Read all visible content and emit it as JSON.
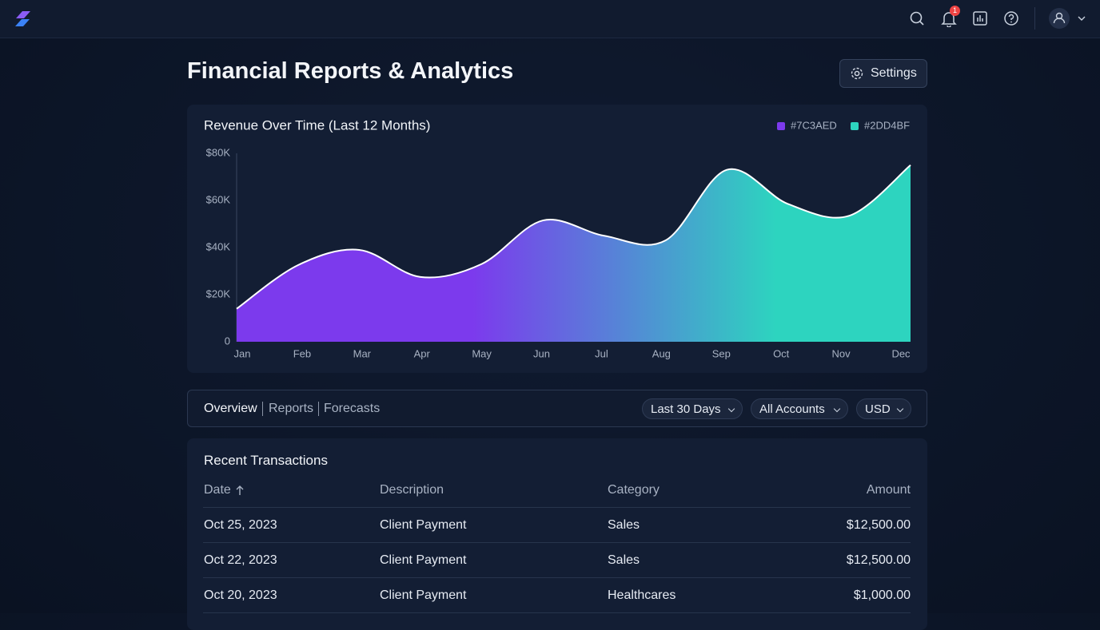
{
  "header": {
    "notification_count": "1"
  },
  "page": {
    "title": "Financial Reports & Analytics",
    "settings_label": "Settings"
  },
  "chart_data": {
    "type": "area",
    "title": "Revenue Over Time (Last 12 Months)",
    "categories": [
      "Jan",
      "Feb",
      "Mar",
      "Apr",
      "May",
      "Jun",
      "Jul",
      "Aug",
      "Sep",
      "Oct",
      "Nov",
      "Dec"
    ],
    "values": [
      14000,
      32500,
      39000,
      27500,
      33000,
      51500,
      45000,
      43000,
      73000,
      58500,
      53500,
      75000
    ],
    "gradient": [
      {
        "name": "#7C3AED",
        "color": "#7C3AED"
      },
      {
        "name": "#2DD4BF",
        "color": "#2DD4BF"
      }
    ],
    "ylim": [
      0,
      80000
    ],
    "yticks": [
      0,
      {
        "value": 20000,
        "label": "$20K"
      },
      {
        "value": 40000,
        "label": "$40K"
      },
      {
        "value": 60000,
        "label": "$60K"
      },
      {
        "value": 80000,
        "label": "$80K"
      }
    ],
    "grid": false
  },
  "tabs": [
    "Overview",
    "Reports",
    "Forecasts"
  ],
  "filters": [
    "Last 30 Days",
    "All Accounts",
    "USD"
  ],
  "table": {
    "title": "Recent Transactions",
    "columns": [
      "Date",
      "Description",
      "Category",
      "Amount"
    ],
    "rows": [
      [
        "Oct 25, 2023",
        "Client Payment",
        "Sales",
        "$12,500.00"
      ],
      [
        "Oct 22, 2023",
        "Client Payment",
        "Sales",
        "$12,500.00"
      ],
      [
        "Oct 20, 2023",
        "Client Payment",
        "Healthcares",
        "$1,000.00"
      ]
    ]
  }
}
